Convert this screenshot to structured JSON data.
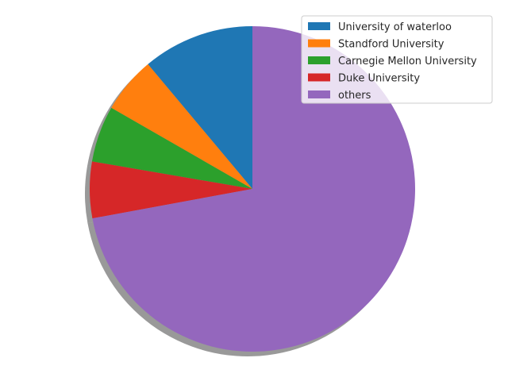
{
  "chart_data": {
    "type": "pie",
    "categories": [
      "University of waterloo",
      "Standford University",
      "Carnegie Mellon University",
      "Duke University",
      "others"
    ],
    "values": [
      11.1,
      5.6,
      5.6,
      5.6,
      72.1
    ],
    "colors": [
      "#1f77b4",
      "#ff7f0e",
      "#2ca02c",
      "#d62728",
      "#9467bd"
    ],
    "start_angle_deg": 90,
    "direction": "counterclockwise",
    "shadow": true,
    "legend_position": "top-right",
    "title": ""
  }
}
